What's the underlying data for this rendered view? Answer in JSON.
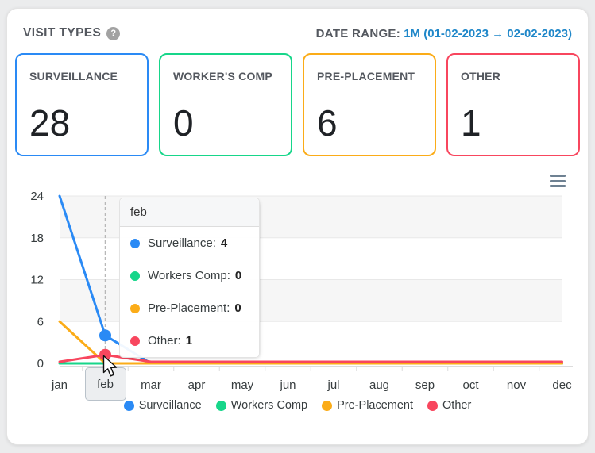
{
  "header": {
    "title": "VISIT TYPES",
    "help_icon": "?",
    "date_range_label": "DATE RANGE:",
    "date_range_value": "1M (01-02-2023 → 02-02-2023)"
  },
  "colors": {
    "surveillance": "#2a8af5",
    "workers_comp": "#17d68a",
    "pre_placement": "#fbac18",
    "other": "#f8465e",
    "date_range_text": "#1f87c9"
  },
  "cards": [
    {
      "label": "SURVEILLANCE",
      "value": "28",
      "color": "#2a8af5"
    },
    {
      "label": "WORKER'S COMP",
      "value": "0",
      "color": "#17d68a"
    },
    {
      "label": "PRE-PLACEMENT",
      "value": "6",
      "color": "#fbac18"
    },
    {
      "label": "OTHER",
      "value": "1",
      "color": "#f8465e"
    }
  ],
  "chart_data": {
    "type": "line",
    "categories": [
      "jan",
      "feb",
      "mar",
      "apr",
      "may",
      "jun",
      "jul",
      "aug",
      "sep",
      "oct",
      "nov",
      "dec"
    ],
    "series": [
      {
        "name": "Surveillance",
        "color": "#2a8af5",
        "values": [
          24,
          4,
          0,
          0,
          0,
          0,
          0,
          0,
          0,
          0,
          0,
          0
        ]
      },
      {
        "name": "Workers Comp",
        "color": "#17d68a",
        "values": [
          0,
          0,
          0,
          0,
          0,
          0,
          0,
          0,
          0,
          0,
          0,
          0
        ]
      },
      {
        "name": "Pre-Placement",
        "color": "#fbac18",
        "values": [
          6,
          0,
          0,
          0,
          0,
          0,
          0,
          0,
          0,
          0,
          0,
          0
        ]
      },
      {
        "name": "Other",
        "color": "#f8465e",
        "values": [
          0,
          1,
          0,
          0,
          0,
          0,
          0,
          0,
          0,
          0,
          0,
          0
        ]
      }
    ],
    "yticks": [
      0,
      6,
      12,
      18,
      24
    ],
    "ylim": [
      0,
      24
    ],
    "grid": "horizontal-alternating-bands",
    "legend_position": "bottom",
    "highlight_month": "feb",
    "highlight_month_index": 1,
    "markers": [
      {
        "series": "Surveillance",
        "month": "feb",
        "value": 4
      },
      {
        "series": "Other",
        "month": "feb",
        "value": 1
      }
    ]
  },
  "tooltip": {
    "title": "feb",
    "rows": [
      {
        "label": "Surveillance:",
        "value": "4",
        "color": "#2a8af5"
      },
      {
        "label": "Workers Comp:",
        "value": "0",
        "color": "#17d68a"
      },
      {
        "label": "Pre-Placement:",
        "value": "0",
        "color": "#fbac18"
      },
      {
        "label": "Other:",
        "value": "1",
        "color": "#f8465e"
      }
    ]
  },
  "xaxis_tooltip": "feb",
  "legend": [
    {
      "label": "Surveillance",
      "color": "#2a8af5"
    },
    {
      "label": "Workers Comp",
      "color": "#17d68a"
    },
    {
      "label": "Pre-Placement",
      "color": "#fbac18"
    },
    {
      "label": "Other",
      "color": "#f8465e"
    }
  ],
  "toolbar": {
    "menu_icon": "hamburger-menu"
  }
}
